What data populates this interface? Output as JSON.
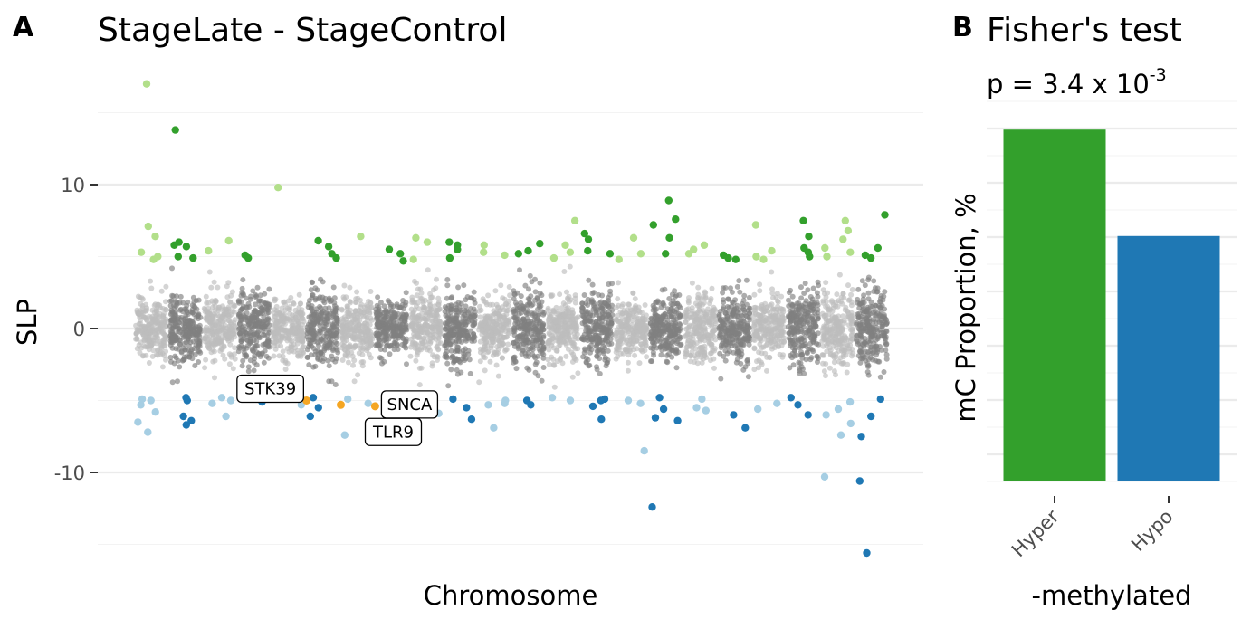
{
  "panels": {
    "a": {
      "tag": "A",
      "title": "StageLate - StageControl",
      "xlabel": "Chromosome",
      "ylabel": "SLP",
      "yticks": [
        "10",
        "0",
        "-10"
      ]
    },
    "b": {
      "tag": "B",
      "title": "Fisher's test",
      "pvalue_text": "p = 3.4 x 10",
      "pvalue_exponent": "-3",
      "xlabel": "-methylated",
      "ylabel": "mC Proportion, %",
      "categories": [
        "Hyper",
        "Hypo"
      ]
    }
  },
  "chart_data": [
    {
      "type": "scatter",
      "title": "StageLate - StageControl",
      "xlabel": "Chromosome",
      "ylabel": "SLP",
      "ylim": [
        -16,
        16
      ],
      "y_ticks": [
        10,
        0,
        -10
      ],
      "grid": true,
      "chromosome_count": 22,
      "background_band_sd": [
        1.1,
        1.1,
        1.2,
        1.4,
        1.0,
        1.3,
        1.1,
        1.0,
        1.3,
        1.2,
        1.1,
        1.3,
        1.2,
        1.3,
        1.0,
        1.0,
        1.1,
        1.2,
        1.1,
        1.3,
        1.4,
        1.4
      ],
      "colors": {
        "background_odd": "#bdbdbd",
        "background_even": "#7f7f7f",
        "hyper_odd": "#b2df8a",
        "hyper_even": "#33a02c",
        "hypo_odd": "#a6cee3",
        "hypo_even": "#1f78b4",
        "highlight": "#f5a623"
      },
      "significant_points": [
        {
          "chr": 1,
          "y": [
            17.0,
            6.4,
            7.1,
            5.3,
            5.0,
            4.8,
            -4.9,
            -5.0,
            -6.5,
            -7.2,
            -5.8,
            -5.3
          ]
        },
        {
          "chr": 2,
          "y": [
            13.8,
            5.7,
            6.0,
            5.8,
            5.0,
            4.9,
            -4.8,
            -6.1,
            -6.4,
            -6.7,
            -5.0
          ]
        },
        {
          "chr": 3,
          "y": [
            5.4,
            6.1,
            -4.8,
            -5.0,
            -6.1,
            -5.2
          ]
        },
        {
          "chr": 4,
          "y": [
            5.1,
            4.9,
            -4.8,
            -5.1,
            -4.9
          ]
        },
        {
          "chr": 5,
          "y": [
            9.8,
            -4.9,
            -5.3
          ]
        },
        {
          "chr": 6,
          "y": [
            6.1,
            5.7,
            4.9,
            5.2,
            -4.8,
            -5.5,
            -6.1
          ]
        },
        {
          "chr": 7,
          "y": [
            6.4,
            -4.9,
            -5.2,
            -7.4
          ]
        },
        {
          "chr": 8,
          "y": [
            5.5,
            5.2,
            4.7,
            -4.8,
            -5.0
          ]
        },
        {
          "chr": 9,
          "y": [
            6.3,
            6.0,
            4.8,
            -4.9,
            -5.4,
            -5.9
          ]
        },
        {
          "chr": 10,
          "y": [
            6.0,
            5.8,
            5.5,
            4.9,
            -4.9,
            -5.5,
            -6.3
          ]
        },
        {
          "chr": 11,
          "y": [
            5.8,
            5.3,
            5.1,
            -5.2,
            -5.0,
            -6.9,
            -5.3
          ]
        },
        {
          "chr": 12,
          "y": [
            5.4,
            5.9,
            5.2,
            -5.3,
            -5.0
          ]
        },
        {
          "chr": 13,
          "y": [
            7.5,
            5.8,
            5.3,
            4.9,
            -4.8,
            -5.0
          ]
        },
        {
          "chr": 14,
          "y": [
            6.6,
            5.4,
            5.2,
            6.2,
            -4.9,
            -5.0,
            -6.3,
            -5.4
          ]
        },
        {
          "chr": 15,
          "y": [
            6.3,
            5.2,
            4.8,
            -5.0,
            -8.5,
            -5.2
          ]
        },
        {
          "chr": 16,
          "y": [
            8.9,
            7.6,
            7.2,
            6.3,
            5.2,
            -4.8,
            -6.2,
            -6.4,
            -12.4,
            -5.6
          ]
        },
        {
          "chr": 17,
          "y": [
            5.8,
            5.5,
            5.2,
            -4.9,
            -5.5,
            -5.7
          ]
        },
        {
          "chr": 18,
          "y": [
            5.1,
            4.9,
            4.8,
            -6.0,
            -6.9
          ]
        },
        {
          "chr": 19,
          "y": [
            7.2,
            5.4,
            5.0,
            4.8,
            -5.2,
            -5.6
          ]
        },
        {
          "chr": 20,
          "y": [
            7.5,
            6.4,
            5.6,
            5.3,
            5.0,
            -4.8,
            -5.3,
            -6.0
          ]
        },
        {
          "chr": 21,
          "y": [
            7.5,
            6.8,
            6.2,
            5.6,
            5.3,
            5.0,
            -5.1,
            -6.0,
            -10.3,
            -7.4,
            -6.6,
            -5.6
          ]
        },
        {
          "chr": 22,
          "y": [
            7.9,
            5.6,
            5.1,
            4.9,
            -4.9,
            -10.6,
            -15.6,
            -7.5,
            -6.1
          ]
        }
      ],
      "highlighted_genes": [
        {
          "label": "STK39",
          "chr": 5,
          "y": -5.0
        },
        {
          "label": "TLR9",
          "chr": 6,
          "y": -5.3
        },
        {
          "label": "SNCA",
          "chr": 7,
          "y": -5.4
        }
      ]
    },
    {
      "type": "bar",
      "title": "Fisher's test",
      "subtitle": "p = 3.4 x 10^-3",
      "xlabel": "-methylated",
      "ylabel": "mC Proportion, %",
      "categories": [
        "Hyper",
        "Hypo"
      ],
      "values": [
        64.8,
        45.2
      ],
      "ylim": [
        0,
        70
      ],
      "colors": [
        "#33a02c",
        "#1f78b4"
      ],
      "y_tick_labels_shown": false,
      "grid": true
    }
  ]
}
